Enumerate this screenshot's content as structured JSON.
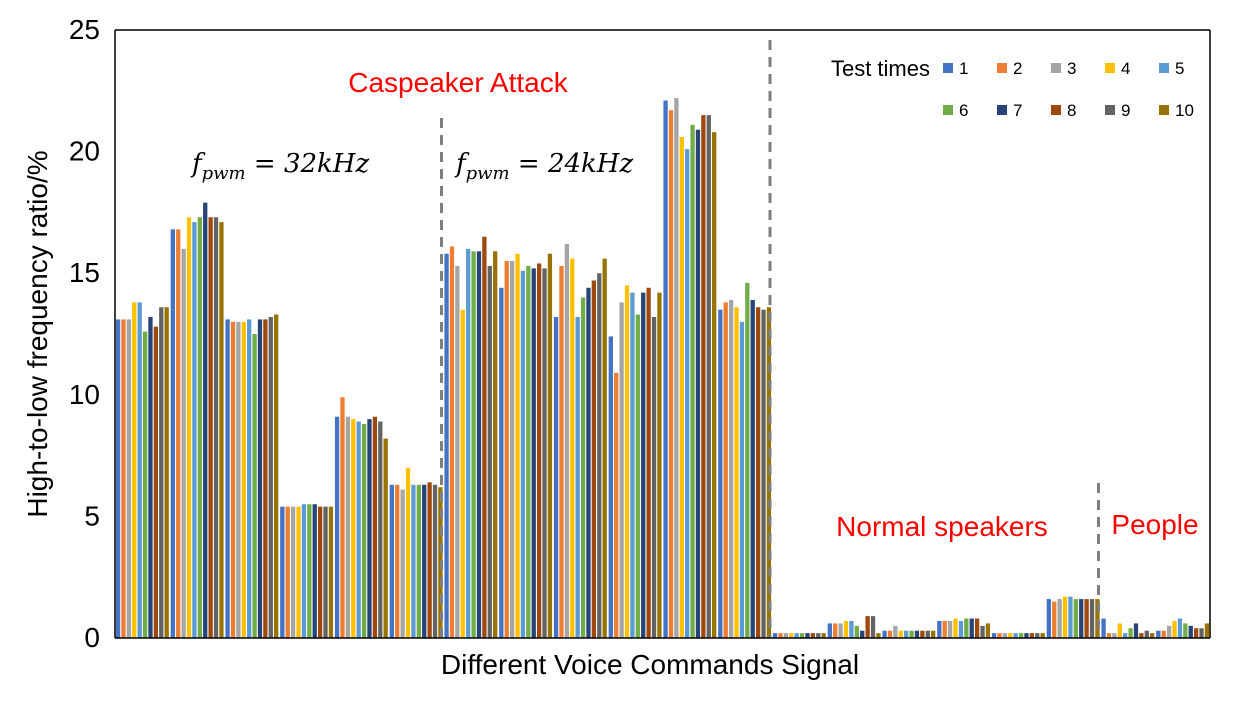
{
  "chart_data": {
    "type": "bar",
    "title": "",
    "xlabel": "Different Voice Commands Signal",
    "ylabel": "High-to-low frequency ratio/%",
    "ylim": [
      0,
      25
    ],
    "yticks": [
      0,
      5,
      10,
      15,
      20,
      25
    ],
    "grid": false,
    "legend": {
      "title": "Test times",
      "placement": "top-right"
    },
    "colors": [
      "#4472c4",
      "#ed7d31",
      "#a5a5a5",
      "#ffc000",
      "#5b9bd5",
      "#70ad47",
      "#264478",
      "#9e480e",
      "#636363",
      "#997300"
    ],
    "series_names": [
      "1",
      "2",
      "3",
      "4",
      "5",
      "6",
      "7",
      "8",
      "9",
      "10"
    ],
    "annotations": {
      "caspeaker": "Caspeaker Attack",
      "f32": {
        "base": "f",
        "sub": "pwm",
        "rest": " = 32kHz"
      },
      "f24": {
        "base": "f",
        "sub": "pwm",
        "rest": " = 24kHz"
      },
      "normal": "Normal speakers",
      "people": "People"
    },
    "annotation_color": "#ff0000",
    "divider_color": "#7f7f7f",
    "groups": [
      [
        13.1,
        13.1,
        13.1,
        13.8,
        13.8,
        12.6,
        13.2,
        12.8,
        13.6,
        13.6
      ],
      [
        16.8,
        16.8,
        16.0,
        17.3,
        17.1,
        17.3,
        17.9,
        17.3,
        17.3,
        17.1
      ],
      [
        13.1,
        13.0,
        13.0,
        13.0,
        13.1,
        12.5,
        13.1,
        13.1,
        13.2,
        13.3
      ],
      [
        5.4,
        5.4,
        5.4,
        5.4,
        5.5,
        5.5,
        5.5,
        5.4,
        5.4,
        5.4
      ],
      [
        9.1,
        9.9,
        9.1,
        9.0,
        8.9,
        8.8,
        9.0,
        9.1,
        8.9,
        8.2
      ],
      [
        6.3,
        6.3,
        6.1,
        7.0,
        6.3,
        6.3,
        6.3,
        6.4,
        6.3,
        6.2
      ],
      [
        15.8,
        16.1,
        15.3,
        13.5,
        16.0,
        15.9,
        15.9,
        16.5,
        15.3,
        15.9
      ],
      [
        14.4,
        15.5,
        15.5,
        15.8,
        15.1,
        15.3,
        15.2,
        15.4,
        15.2,
        15.8
      ],
      [
        13.2,
        15.3,
        16.2,
        15.6,
        13.2,
        14.0,
        14.4,
        14.7,
        15.0,
        15.6
      ],
      [
        12.4,
        10.9,
        13.8,
        14.5,
        14.2,
        13.3,
        14.2,
        14.4,
        13.2,
        14.2
      ],
      [
        22.1,
        21.7,
        22.2,
        20.6,
        20.1,
        21.1,
        20.9,
        21.5,
        21.5,
        20.8
      ],
      [
        13.5,
        13.8,
        13.9,
        13.6,
        13.0,
        14.6,
        13.9,
        13.6,
        13.5,
        13.6
      ],
      [
        0.2,
        0.2,
        0.2,
        0.2,
        0.2,
        0.2,
        0.2,
        0.2,
        0.2,
        0.2
      ],
      [
        0.6,
        0.6,
        0.6,
        0.7,
        0.7,
        0.5,
        0.3,
        0.9,
        0.9,
        0.2
      ],
      [
        0.3,
        0.3,
        0.5,
        0.3,
        0.3,
        0.3,
        0.3,
        0.3,
        0.3,
        0.3
      ],
      [
        0.7,
        0.7,
        0.7,
        0.8,
        0.7,
        0.8,
        0.8,
        0.8,
        0.5,
        0.6
      ],
      [
        0.2,
        0.2,
        0.2,
        0.2,
        0.2,
        0.2,
        0.2,
        0.2,
        0.2,
        0.2
      ],
      [
        1.6,
        1.5,
        1.6,
        1.7,
        1.7,
        1.6,
        1.6,
        1.6,
        1.6,
        1.6
      ],
      [
        0.8,
        0.2,
        0.2,
        0.6,
        0.2,
        0.4,
        0.6,
        0.2,
        0.3,
        0.2
      ],
      [
        0.3,
        0.3,
        0.5,
        0.7,
        0.8,
        0.6,
        0.5,
        0.4,
        0.4,
        0.6
      ]
    ]
  }
}
